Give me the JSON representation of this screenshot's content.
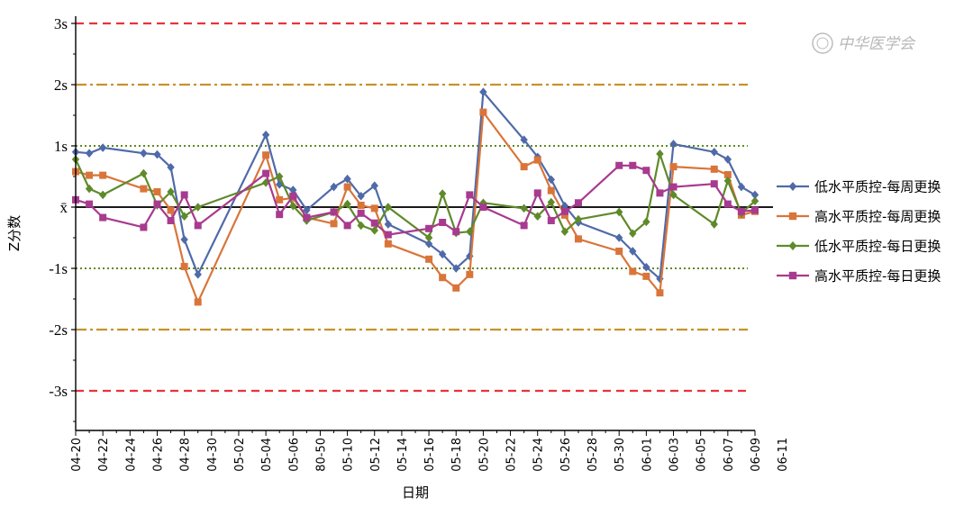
{
  "watermark": "中华医学会",
  "chart_data": {
    "type": "line",
    "title": "",
    "xlabel": "日期",
    "ylabel": "Z分数",
    "ylim": [
      -3.6,
      3.0
    ],
    "x_tick_labels": [
      "04-20",
      "04-22",
      "04-24",
      "04-26",
      "04-28",
      "04-30",
      "05-02",
      "05-04",
      "05-06",
      "80-50",
      "05-10",
      "05-12",
      "05-14",
      "05-16",
      "05-18",
      "05-20",
      "05-22",
      "05-24",
      "05-26",
      "05-28",
      "05-30",
      "06-01",
      "06-03",
      "06-05",
      "06-07",
      "06-09",
      "06-11"
    ],
    "y_ticks": [
      {
        "value": 3,
        "label": "3s"
      },
      {
        "value": 2,
        "label": "2s"
      },
      {
        "value": 1,
        "label": "1s"
      },
      {
        "value": 0,
        "label": "x̄"
      },
      {
        "value": -1,
        "label": "-1s"
      },
      {
        "value": -2,
        "label": "-2s"
      },
      {
        "value": -3,
        "label": "-3s"
      }
    ],
    "reference_lines": [
      {
        "value": 3,
        "color": "#e8343c",
        "style": "dashed"
      },
      {
        "value": 2,
        "color": "#c8922a",
        "style": "dashdot"
      },
      {
        "value": 1,
        "color": "#5f8a1f",
        "style": "dotted"
      },
      {
        "value": 0,
        "color": "#1a1a1a",
        "style": "solid"
      },
      {
        "value": -1,
        "color": "#5f8a1f",
        "style": "dotted"
      },
      {
        "value": -2,
        "color": "#c8922a",
        "style": "dashdot"
      },
      {
        "value": -3,
        "color": "#e8343c",
        "style": "dashed"
      }
    ],
    "legend_position": "right",
    "series": [
      {
        "name": "低水平质控-每周更换",
        "color": "#4f6aa8",
        "marker": "diamond",
        "points": [
          [
            0,
            0.9
          ],
          [
            1,
            0.88
          ],
          [
            2,
            0.97
          ],
          [
            5,
            0.88
          ],
          [
            6,
            0.86
          ],
          [
            7,
            0.65
          ],
          [
            8,
            -0.53
          ],
          [
            9,
            -1.1
          ],
          [
            14,
            1.18
          ],
          [
            15,
            0.37
          ],
          [
            16,
            0.28
          ],
          [
            17,
            -0.05
          ],
          [
            19,
            0.33
          ],
          [
            20,
            0.46
          ],
          [
            21,
            0.18
          ],
          [
            22,
            0.35
          ],
          [
            23,
            -0.28
          ],
          [
            26,
            -0.6
          ],
          [
            27,
            -0.77
          ],
          [
            28,
            -1.0
          ],
          [
            29,
            -0.8
          ],
          [
            30,
            1.88
          ],
          [
            33,
            1.1
          ],
          [
            34,
            0.82
          ],
          [
            35,
            0.45
          ],
          [
            36,
            0.02
          ],
          [
            37,
            -0.25
          ],
          [
            40,
            -0.5
          ],
          [
            41,
            -0.72
          ],
          [
            42,
            -0.98
          ],
          [
            43,
            -1.17
          ],
          [
            44,
            1.03
          ],
          [
            47,
            0.9
          ],
          [
            48,
            0.78
          ],
          [
            49,
            0.33
          ],
          [
            50,
            0.2
          ]
        ]
      },
      {
        "name": "高水平质控-每周更换",
        "color": "#d9753a",
        "marker": "square",
        "points": [
          [
            0,
            0.58
          ],
          [
            1,
            0.52
          ],
          [
            2,
            0.52
          ],
          [
            5,
            0.3
          ],
          [
            6,
            0.25
          ],
          [
            7,
            -0.05
          ],
          [
            8,
            -0.97
          ],
          [
            9,
            -1.55
          ],
          [
            14,
            0.85
          ],
          [
            15,
            0.12
          ],
          [
            16,
            0.15
          ],
          [
            17,
            -0.17
          ],
          [
            19,
            -0.27
          ],
          [
            20,
            0.33
          ],
          [
            21,
            0.03
          ],
          [
            22,
            -0.02
          ],
          [
            23,
            -0.6
          ],
          [
            26,
            -0.85
          ],
          [
            27,
            -1.15
          ],
          [
            28,
            -1.32
          ],
          [
            29,
            -1.1
          ],
          [
            30,
            1.55
          ],
          [
            33,
            0.66
          ],
          [
            34,
            0.77
          ],
          [
            35,
            0.27
          ],
          [
            36,
            -0.13
          ],
          [
            37,
            -0.52
          ],
          [
            40,
            -0.72
          ],
          [
            41,
            -1.05
          ],
          [
            42,
            -1.13
          ],
          [
            43,
            -1.4
          ],
          [
            44,
            0.66
          ],
          [
            47,
            0.62
          ],
          [
            48,
            0.53
          ],
          [
            49,
            -0.13
          ],
          [
            50,
            -0.07
          ]
        ]
      },
      {
        "name": "低水平质控-每日更换",
        "color": "#5f8a2a",
        "marker": "diamond",
        "points": [
          [
            0,
            0.78
          ],
          [
            1,
            0.3
          ],
          [
            2,
            0.2
          ],
          [
            5,
            0.55
          ],
          [
            6,
            0.03
          ],
          [
            7,
            0.25
          ],
          [
            8,
            -0.15
          ],
          [
            9,
            0.0
          ],
          [
            14,
            0.4
          ],
          [
            15,
            0.5
          ],
          [
            16,
            0.02
          ],
          [
            17,
            -0.22
          ],
          [
            19,
            -0.08
          ],
          [
            20,
            0.05
          ],
          [
            21,
            -0.3
          ],
          [
            22,
            -0.38
          ],
          [
            23,
            0.0
          ],
          [
            26,
            -0.5
          ],
          [
            27,
            0.22
          ],
          [
            28,
            -0.42
          ],
          [
            29,
            -0.4
          ],
          [
            30,
            0.07
          ],
          [
            33,
            -0.02
          ],
          [
            34,
            -0.15
          ],
          [
            35,
            0.08
          ],
          [
            36,
            -0.4
          ],
          [
            37,
            -0.2
          ],
          [
            40,
            -0.08
          ],
          [
            41,
            -0.43
          ],
          [
            42,
            -0.24
          ],
          [
            43,
            0.87
          ],
          [
            44,
            0.2
          ],
          [
            47,
            -0.28
          ],
          [
            48,
            0.43
          ],
          [
            49,
            -0.1
          ],
          [
            50,
            0.1
          ]
        ]
      },
      {
        "name": "高水平质控-每日更换",
        "color": "#a83a8f",
        "marker": "square",
        "points": [
          [
            0,
            0.12
          ],
          [
            1,
            0.05
          ],
          [
            2,
            -0.17
          ],
          [
            5,
            -0.33
          ],
          [
            6,
            0.05
          ],
          [
            7,
            -0.22
          ],
          [
            8,
            0.2
          ],
          [
            9,
            -0.3
          ],
          [
            14,
            0.55
          ],
          [
            15,
            -0.12
          ],
          [
            16,
            0.18
          ],
          [
            17,
            -0.17
          ],
          [
            19,
            -0.08
          ],
          [
            20,
            -0.3
          ],
          [
            21,
            -0.1
          ],
          [
            22,
            -0.26
          ],
          [
            23,
            -0.45
          ],
          [
            26,
            -0.35
          ],
          [
            27,
            -0.25
          ],
          [
            28,
            -0.4
          ],
          [
            29,
            0.2
          ],
          [
            30,
            0.0
          ],
          [
            33,
            -0.3
          ],
          [
            34,
            0.23
          ],
          [
            35,
            -0.22
          ],
          [
            36,
            -0.07
          ],
          [
            37,
            0.07
          ],
          [
            40,
            0.68
          ],
          [
            41,
            0.68
          ],
          [
            42,
            0.6
          ],
          [
            43,
            0.23
          ],
          [
            44,
            0.33
          ],
          [
            47,
            0.38
          ],
          [
            48,
            0.05
          ],
          [
            49,
            -0.07
          ],
          [
            50,
            -0.05
          ]
        ]
      }
    ]
  }
}
